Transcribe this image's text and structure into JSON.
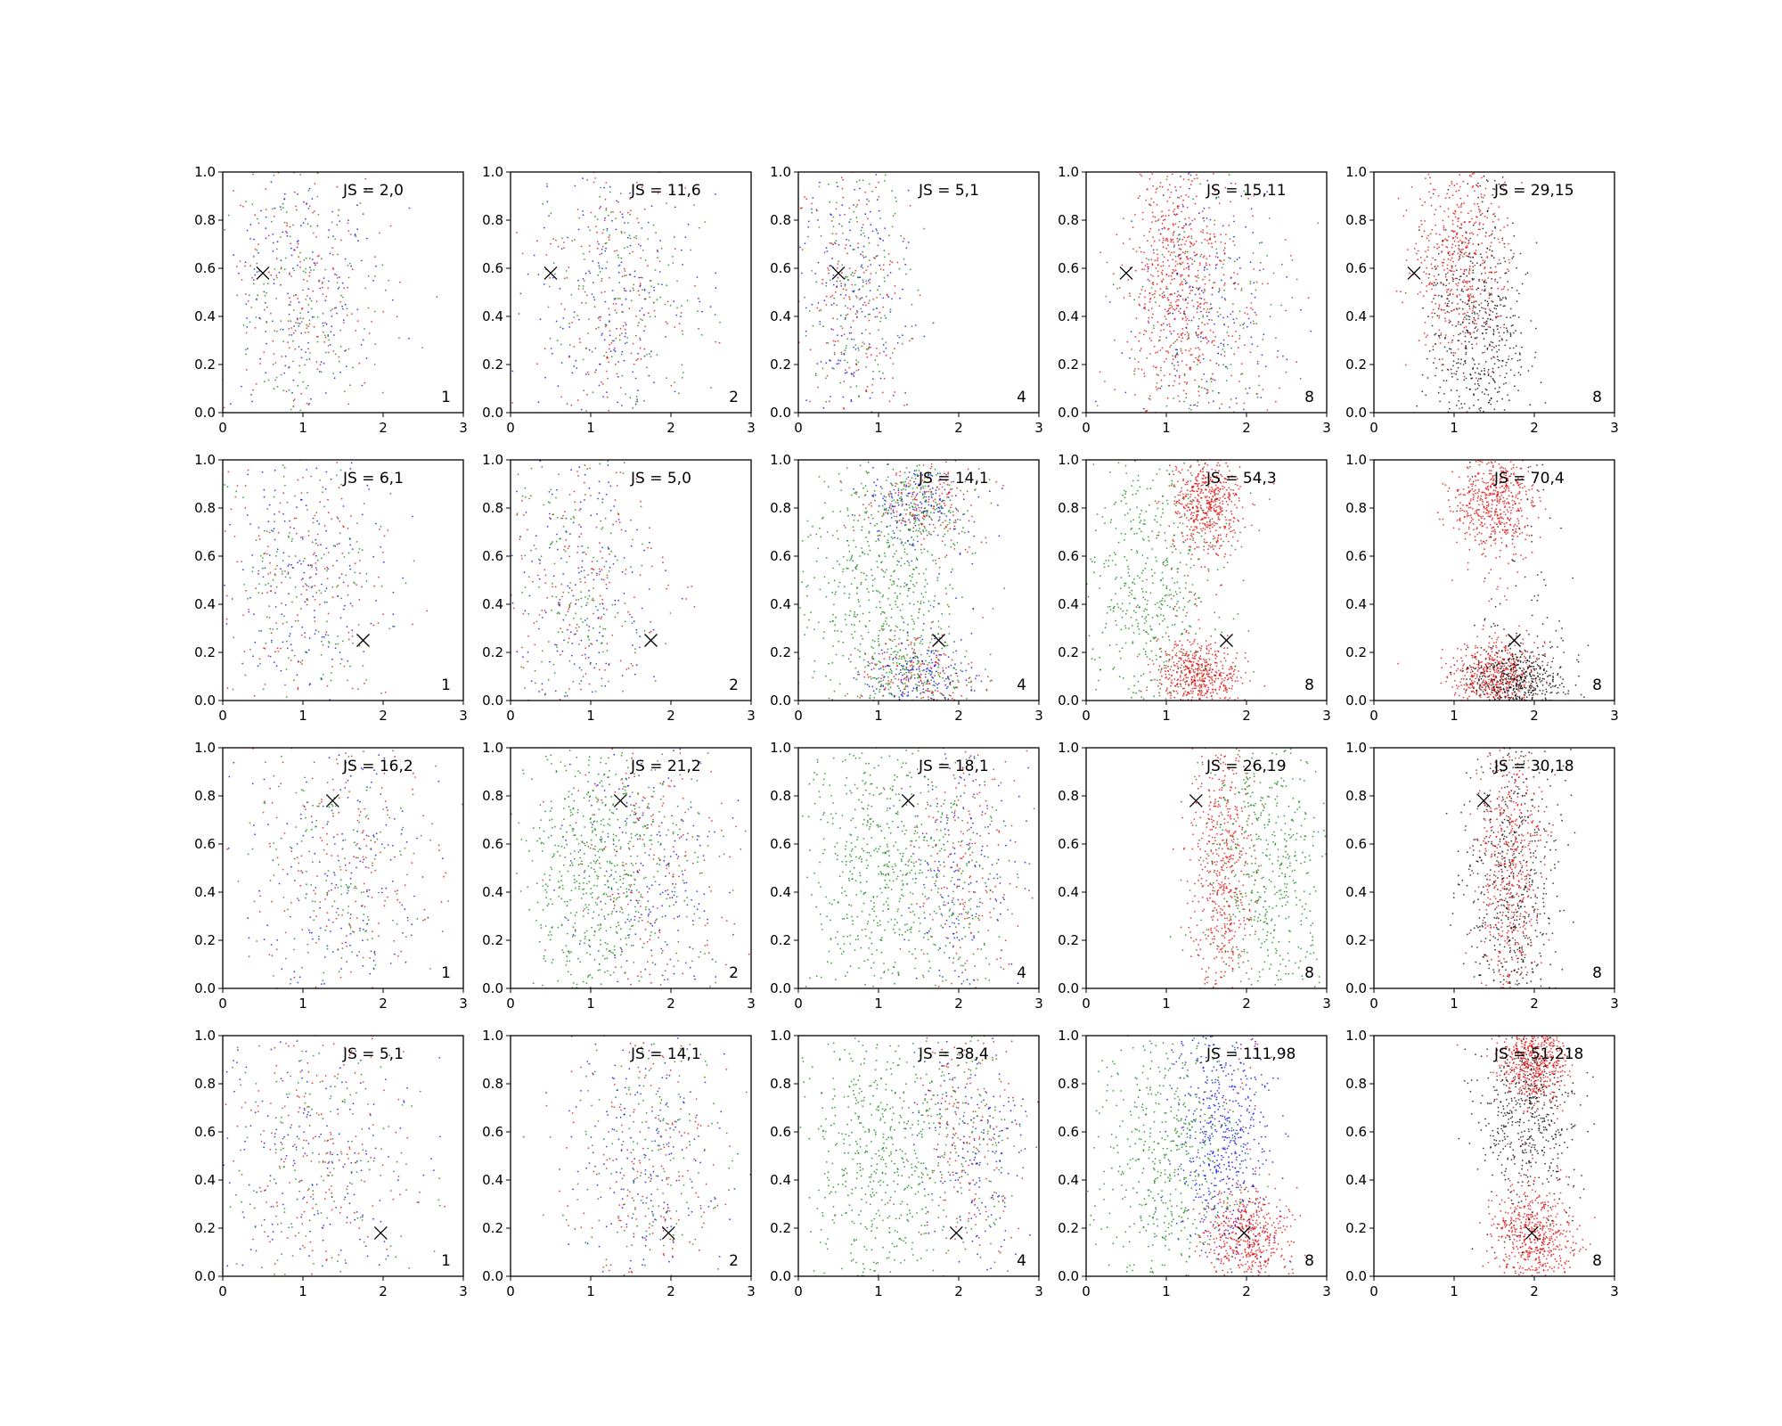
{
  "chart_data": {
    "type": "scatter",
    "grid": false,
    "xlim": [
      0,
      3
    ],
    "ylim": [
      0,
      1
    ],
    "x_ticks": [
      "0",
      "1",
      "2",
      "3"
    ],
    "y_ticks": [
      "0.0",
      "0.2",
      "0.4",
      "0.6",
      "0.8",
      "1.0"
    ],
    "series_colors": {
      "red": "#e00000",
      "green": "#008000",
      "blue": "#0000e0",
      "black": "#000000"
    },
    "rows": [
      {
        "marker": [
          0.5,
          0.58
        ],
        "panels": [
          {
            "js": "JS = 2,0",
            "n": "1",
            "colors": [
              "red",
              "green",
              "blue"
            ],
            "clusters": [
              [
                1.0,
                0.5,
                0.5,
                0.3,
                "mix"
              ]
            ]
          },
          {
            "js": "JS = 11,6",
            "n": "2",
            "colors": [
              "red",
              "green",
              "blue"
            ],
            "clusters": [
              [
                1.3,
                0.5,
                0.5,
                0.3,
                "mix"
              ]
            ]
          },
          {
            "js": "JS = 5,1",
            "n": "4",
            "colors": [
              "red",
              "green",
              "blue"
            ],
            "clusters": [
              [
                0.7,
                0.5,
                0.35,
                0.3,
                "mix"
              ]
            ]
          },
          {
            "js": "JS = 15,11",
            "n": "8",
            "colors": [
              "red",
              "green",
              "blue"
            ],
            "clusters": [
              [
                1.1,
                0.6,
                0.3,
                0.25,
                "red"
              ],
              [
                1.5,
                0.4,
                0.5,
                0.3,
                "mix"
              ]
            ]
          },
          {
            "js": "JS = 29,15",
            "n": "8",
            "colors": [
              "red",
              "black"
            ],
            "clusters": [
              [
                1.1,
                0.65,
                0.3,
                0.22,
                "red"
              ],
              [
                1.3,
                0.3,
                0.3,
                0.25,
                "black"
              ]
            ]
          }
        ]
      },
      {
        "marker": [
          1.75,
          0.25
        ],
        "panels": [
          {
            "js": "JS = 6,1",
            "n": "1",
            "colors": [
              "red",
              "green",
              "blue"
            ],
            "clusters": [
              [
                1.0,
                0.5,
                0.55,
                0.3,
                "mix"
              ]
            ]
          },
          {
            "js": "JS = 5,0",
            "n": "2",
            "colors": [
              "red",
              "green",
              "blue"
            ],
            "clusters": [
              [
                0.9,
                0.5,
                0.5,
                0.3,
                "mix"
              ]
            ]
          },
          {
            "js": "JS = 14,1",
            "n": "4",
            "colors": [
              "red",
              "green",
              "blue"
            ],
            "clusters": [
              [
                1.5,
                0.82,
                0.35,
                0.1,
                "mix"
              ],
              [
                1.5,
                0.1,
                0.35,
                0.08,
                "mix"
              ],
              [
                1.0,
                0.45,
                0.5,
                0.25,
                "green"
              ]
            ]
          },
          {
            "js": "JS = 54,3",
            "n": "8",
            "colors": [
              "red",
              "green",
              "blue"
            ],
            "clusters": [
              [
                1.5,
                0.82,
                0.22,
                0.1,
                "red"
              ],
              [
                1.4,
                0.1,
                0.25,
                0.07,
                "red"
              ],
              [
                0.8,
                0.5,
                0.45,
                0.28,
                "green"
              ]
            ]
          },
          {
            "js": "JS = 70,4",
            "n": "8",
            "colors": [
              "red",
              "black"
            ],
            "clusters": [
              [
                1.5,
                0.82,
                0.25,
                0.1,
                "red"
              ],
              [
                1.5,
                0.1,
                0.25,
                0.07,
                "red"
              ],
              [
                1.8,
                0.08,
                0.3,
                0.08,
                "black"
              ]
            ]
          }
        ]
      },
      {
        "marker": [
          1.37,
          0.78
        ],
        "panels": [
          {
            "js": "JS = 16,2",
            "n": "1",
            "colors": [
              "red",
              "green",
              "blue"
            ],
            "clusters": [
              [
                1.5,
                0.5,
                0.6,
                0.3,
                "mix"
              ]
            ]
          },
          {
            "js": "JS = 21,2",
            "n": "2",
            "colors": [
              "red",
              "green",
              "blue"
            ],
            "clusters": [
              [
                1.8,
                0.5,
                0.5,
                0.3,
                "mix"
              ],
              [
                1.0,
                0.5,
                0.4,
                0.3,
                "green"
              ]
            ]
          },
          {
            "js": "JS = 18,1",
            "n": "4",
            "colors": [
              "red",
              "green",
              "blue"
            ],
            "clusters": [
              [
                2.0,
                0.5,
                0.35,
                0.3,
                "mix"
              ],
              [
                1.0,
                0.5,
                0.45,
                0.3,
                "green"
              ]
            ]
          },
          {
            "js": "JS = 26,19",
            "n": "8",
            "colors": [
              "red",
              "green",
              "blue"
            ],
            "clusters": [
              [
                1.7,
                0.5,
                0.2,
                0.3,
                "red"
              ],
              [
                2.3,
                0.5,
                0.4,
                0.3,
                "green"
              ]
            ]
          },
          {
            "js": "JS = 30,18",
            "n": "8",
            "colors": [
              "red",
              "black"
            ],
            "clusters": [
              [
                1.7,
                0.5,
                0.2,
                0.3,
                "red"
              ],
              [
                1.7,
                0.4,
                0.3,
                0.3,
                "black"
              ]
            ]
          }
        ]
      },
      {
        "marker": [
          1.97,
          0.18
        ],
        "panels": [
          {
            "js": "JS = 5,1",
            "n": "1",
            "colors": [
              "red",
              "green",
              "blue"
            ],
            "clusters": [
              [
                1.2,
                0.5,
                0.6,
                0.3,
                "mix"
              ]
            ]
          },
          {
            "js": "JS = 14,1",
            "n": "2",
            "colors": [
              "red",
              "green",
              "blue"
            ],
            "clusters": [
              [
                1.7,
                0.5,
                0.5,
                0.3,
                "mix"
              ]
            ]
          },
          {
            "js": "JS = 38,4",
            "n": "4",
            "colors": [
              "red",
              "green",
              "blue"
            ],
            "clusters": [
              [
                2.1,
                0.6,
                0.35,
                0.25,
                "mix"
              ],
              [
                1.0,
                0.5,
                0.45,
                0.3,
                "green"
              ]
            ]
          },
          {
            "js": "JS = 111,98",
            "n": "8",
            "colors": [
              "red",
              "green",
              "blue"
            ],
            "clusters": [
              [
                2.0,
                0.17,
                0.25,
                0.1,
                "red"
              ],
              [
                1.7,
                0.6,
                0.3,
                0.25,
                "blue"
              ],
              [
                1.0,
                0.5,
                0.45,
                0.3,
                "green"
              ]
            ]
          },
          {
            "js": "JS = 51,218",
            "n": "8",
            "colors": [
              "red",
              "black"
            ],
            "clusters": [
              [
                2.0,
                0.17,
                0.25,
                0.1,
                "red"
              ],
              [
                1.9,
                0.65,
                0.3,
                0.2,
                "black"
              ],
              [
                2.0,
                0.9,
                0.2,
                0.08,
                "red"
              ]
            ]
          }
        ]
      }
    ]
  }
}
